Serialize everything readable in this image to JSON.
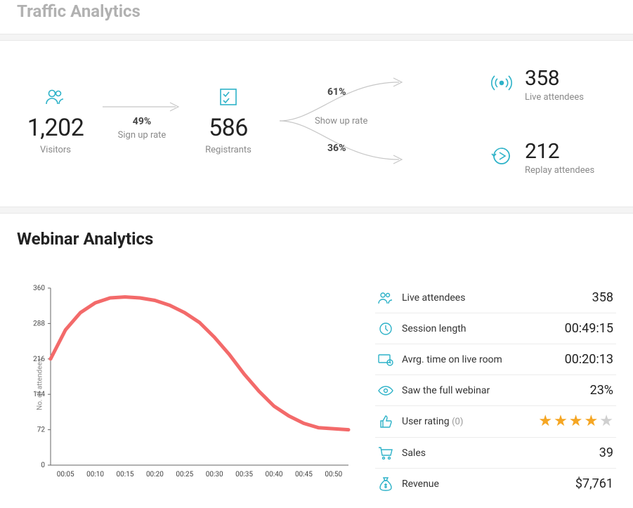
{
  "traffic": {
    "title": "Traffic Analytics",
    "visitors": {
      "value": "1,202",
      "label": "Visitors"
    },
    "signup": {
      "rate": "49%",
      "label": "Sign up rate"
    },
    "registrants": {
      "value": "586",
      "label": "Registrants"
    },
    "showup": {
      "label": "Show up rate",
      "live_rate": "61%",
      "replay_rate": "36%"
    },
    "live": {
      "value": "358",
      "label": "Live attendees"
    },
    "replay": {
      "value": "212",
      "label": "Replay attendees"
    }
  },
  "webinar": {
    "title": "Webinar Analytics",
    "chart": {
      "type": "line",
      "y_label": "No. of attendees",
      "y_ticks": [
        0,
        72,
        144,
        216,
        288,
        360
      ],
      "x_ticks": [
        "00:05",
        "00:10",
        "00:15",
        "00:20",
        "00:25",
        "00:30",
        "00:35",
        "00:40",
        "00:45",
        "00:50"
      ],
      "line_color": "#f36a6a",
      "line_width": 5,
      "axis_color": "#666666",
      "tick_font_size": 10,
      "tick_color": "#444444",
      "background": "#ffffff",
      "points_x": [
        0.0,
        0.05,
        0.1,
        0.15,
        0.2,
        0.25,
        0.3,
        0.35,
        0.4,
        0.45,
        0.5,
        0.55,
        0.6,
        0.65,
        0.7,
        0.75,
        0.8,
        0.85,
        0.9,
        1.0
      ],
      "points_y": [
        216,
        275,
        310,
        330,
        340,
        342,
        340,
        335,
        325,
        310,
        290,
        260,
        225,
        185,
        150,
        120,
        100,
        85,
        76,
        72
      ],
      "y_max": 360
    },
    "stats": {
      "live_attendees": {
        "label": "Live attendees",
        "value": "358"
      },
      "session_length": {
        "label": "Session length",
        "value": "00:49:15"
      },
      "avg_time": {
        "label": "Avrg. time on live room",
        "value": "00:20:13"
      },
      "full_webinar": {
        "label": "Saw the full webinar",
        "value": "23%"
      },
      "rating": {
        "label": "User rating",
        "count_label": "(0)",
        "stars_full": 4,
        "stars_total": 5
      },
      "sales": {
        "label": "Sales",
        "value": "39"
      },
      "revenue": {
        "label": "Revenue",
        "value": "$7,761"
      }
    }
  },
  "colors": {
    "accent": "#2db2c8",
    "star_full": "#f5a623",
    "star_empty": "#cfcfcf",
    "text_muted": "#8a8a8a",
    "divider": "#ececec"
  }
}
